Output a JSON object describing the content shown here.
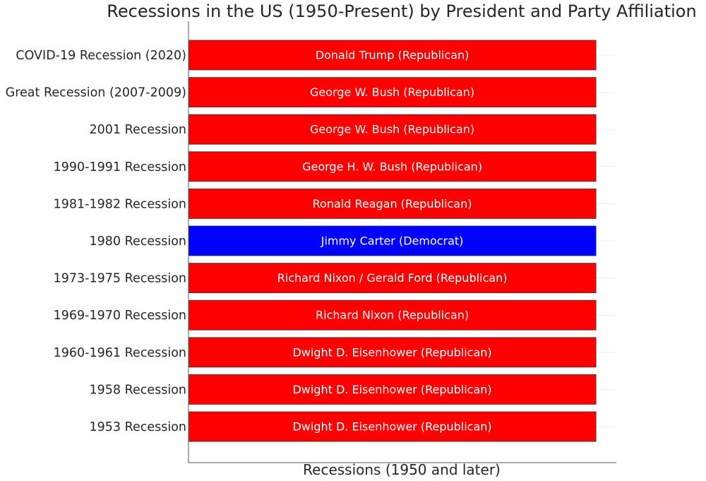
{
  "chart_data": {
    "type": "bar",
    "orientation": "horizontal",
    "title": "Recessions in the US (1950-Present) by President and Party Affiliation",
    "xlabel": "Recessions (1950 and later)",
    "ylabel": "",
    "grid": true,
    "categories": [
      "1953 Recession",
      "1958 Recession",
      "1960-1961 Recession",
      "1969-1970 Recession",
      "1973-1975 Recession",
      "1980 Recession",
      "1981-1982 Recession",
      "1990-1991 Recession",
      "2001 Recession",
      "Great Recession (2007-2009)",
      "COVID-19 Recession (2020)"
    ],
    "values": [
      1,
      1,
      1,
      1,
      1,
      1,
      1,
      1,
      1,
      1,
      1
    ],
    "xlim": [
      0,
      1.05
    ],
    "bar_labels": [
      "Dwight D. Eisenhower (Republican)",
      "Dwight D. Eisenhower (Republican)",
      "Dwight D. Eisenhower (Republican)",
      "Richard Nixon (Republican)",
      "Richard Nixon / Gerald Ford (Republican)",
      "Jimmy Carter (Democrat)",
      "Ronald Reagan (Republican)",
      "George H. W. Bush (Republican)",
      "George W. Bush (Republican)",
      "George W. Bush (Republican)",
      "Donald Trump (Republican)"
    ],
    "party": [
      "Republican",
      "Republican",
      "Republican",
      "Republican",
      "Republican",
      "Democrat",
      "Republican",
      "Republican",
      "Republican",
      "Republican",
      "Republican"
    ],
    "colors": {
      "Republican": "#ff0000",
      "Democrat": "#0000ff"
    }
  }
}
